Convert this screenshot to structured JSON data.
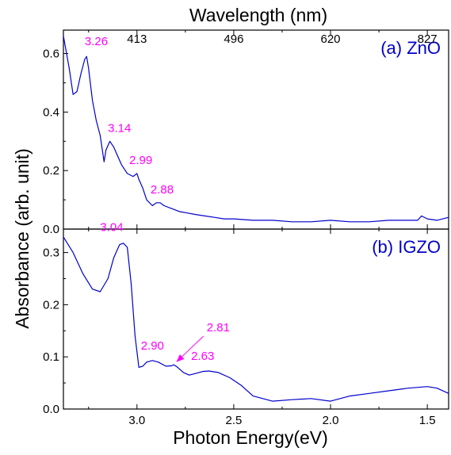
{
  "chart_data": {
    "type": "line",
    "xlabel": "Photon Energy(eV)",
    "top_xlabel": "Wavelength (nm)",
    "ylabel": "Absorbance (arb. unit)",
    "xlim": [
      3.38,
      1.39
    ],
    "x_ticks": [
      3.0,
      2.5,
      2.0,
      1.5
    ],
    "x_tick_labels": [
      "3.0",
      "2.5",
      "2.0",
      "1.5"
    ],
    "top_ticks": [
      {
        "label": "413",
        "energy": 3.0
      },
      {
        "label": "496",
        "energy": 2.5
      },
      {
        "label": "620",
        "energy": 2.0
      },
      {
        "label": "827",
        "energy": 1.5
      }
    ],
    "colors": {
      "line": "#0000cc",
      "panel_label": "#0000cc",
      "annotation": "#ff00ff",
      "axis": "#000000"
    },
    "panels": [
      {
        "label": "(a) ZnO",
        "ylim": [
          0.0,
          0.68
        ],
        "y_ticks": [
          0.0,
          0.2,
          0.4,
          0.6
        ],
        "y_tick_labels": [
          "0.0",
          "0.2",
          "0.4",
          "0.6"
        ],
        "series": {
          "x": [
            3.38,
            3.35,
            3.33,
            3.31,
            3.29,
            3.27,
            3.26,
            3.25,
            3.23,
            3.21,
            3.19,
            3.17,
            3.16,
            3.14,
            3.12,
            3.1,
            3.08,
            3.05,
            3.02,
            3.0,
            2.99,
            2.97,
            2.95,
            2.92,
            2.9,
            2.88,
            2.86,
            2.82,
            2.78,
            2.74,
            2.7,
            2.65,
            2.6,
            2.55,
            2.5,
            2.4,
            2.3,
            2.2,
            2.1,
            2.0,
            1.9,
            1.8,
            1.7,
            1.6,
            1.55,
            1.53,
            1.5,
            1.45,
            1.39
          ],
          "y": [
            0.66,
            0.55,
            0.46,
            0.47,
            0.53,
            0.58,
            0.59,
            0.55,
            0.44,
            0.37,
            0.32,
            0.23,
            0.27,
            0.3,
            0.28,
            0.25,
            0.22,
            0.19,
            0.18,
            0.19,
            0.17,
            0.14,
            0.1,
            0.08,
            0.09,
            0.09,
            0.08,
            0.07,
            0.06,
            0.055,
            0.05,
            0.045,
            0.04,
            0.035,
            0.035,
            0.03,
            0.03,
            0.025,
            0.025,
            0.03,
            0.025,
            0.025,
            0.03,
            0.03,
            0.03,
            0.045,
            0.035,
            0.03,
            0.04
          ]
        },
        "annotations": [
          {
            "text": "3.26",
            "x": 3.26,
            "y": 0.59
          },
          {
            "text": "3.14",
            "x": 3.14,
            "y": 0.3
          },
          {
            "text": "2.99",
            "x": 2.99,
            "y": 0.19
          },
          {
            "text": "2.88",
            "x": 2.88,
            "y": 0.09
          }
        ]
      },
      {
        "label": "(b) IGZO",
        "ylim": [
          0.0,
          0.345
        ],
        "y_ticks": [
          0.0,
          0.1,
          0.2,
          0.3
        ],
        "y_tick_labels": [
          "0.0",
          "0.1",
          "0.2",
          "0.3"
        ],
        "series": {
          "x": [
            3.38,
            3.33,
            3.28,
            3.23,
            3.19,
            3.15,
            3.12,
            3.09,
            3.07,
            3.05,
            3.03,
            3.01,
            2.99,
            2.97,
            2.95,
            2.92,
            2.89,
            2.85,
            2.82,
            2.81,
            2.79,
            2.76,
            2.73,
            2.7,
            2.66,
            2.63,
            2.58,
            2.52,
            2.46,
            2.4,
            2.3,
            2.2,
            2.1,
            2.0,
            1.9,
            1.8,
            1.7,
            1.6,
            1.5,
            1.45,
            1.39
          ],
          "y": [
            0.33,
            0.3,
            0.26,
            0.23,
            0.225,
            0.25,
            0.29,
            0.315,
            0.318,
            0.31,
            0.24,
            0.14,
            0.08,
            0.082,
            0.09,
            0.093,
            0.09,
            0.082,
            0.083,
            0.085,
            0.08,
            0.07,
            0.065,
            0.068,
            0.072,
            0.073,
            0.07,
            0.06,
            0.045,
            0.025,
            0.015,
            0.018,
            0.02,
            0.015,
            0.025,
            0.03,
            0.035,
            0.04,
            0.043,
            0.04,
            0.03
          ]
        },
        "annotations": [
          {
            "text": "3.04",
            "x": 3.04,
            "y": 0.32
          },
          {
            "text": "2.90",
            "x": 2.9,
            "y": 0.093
          },
          {
            "text": "2.81",
            "x": 2.81,
            "y": 0.085
          },
          {
            "text": "2.63",
            "x": 2.63,
            "y": 0.073
          }
        ]
      }
    ]
  }
}
